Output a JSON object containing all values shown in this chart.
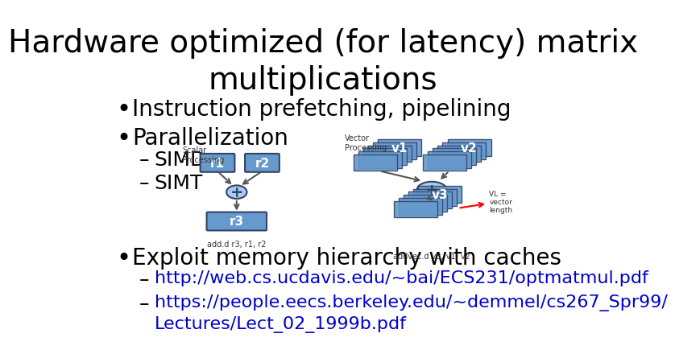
{
  "title_line1": "Hardware optimized (for latency) matrix",
  "title_line2": "multiplications",
  "background_color": "#ffffff",
  "title_fontsize": 28,
  "title_color": "#000000",
  "bullet_color": "#000000",
  "bullet_fontsize": 20,
  "sub_bullet_fontsize": 18,
  "link_color": "#0000cc",
  "bullets": [
    "Instruction prefetching, pipelining",
    "Parallelization"
  ],
  "sub_bullets": [
    "SIMD",
    "SIMT"
  ],
  "bullet3": "Exploit memory hierarchy with caches",
  "sub_bullet3_1": "http://web.cs.ucdavis.edu/~bai/ECS231/optmatmul.pdf",
  "sub_bullet3_2": "https://people.eecs.berkeley.edu/~demmel/cs267_Spr99/",
  "sub_bullet3_2b": "Lectures/Lect_02_1999b.pdf"
}
